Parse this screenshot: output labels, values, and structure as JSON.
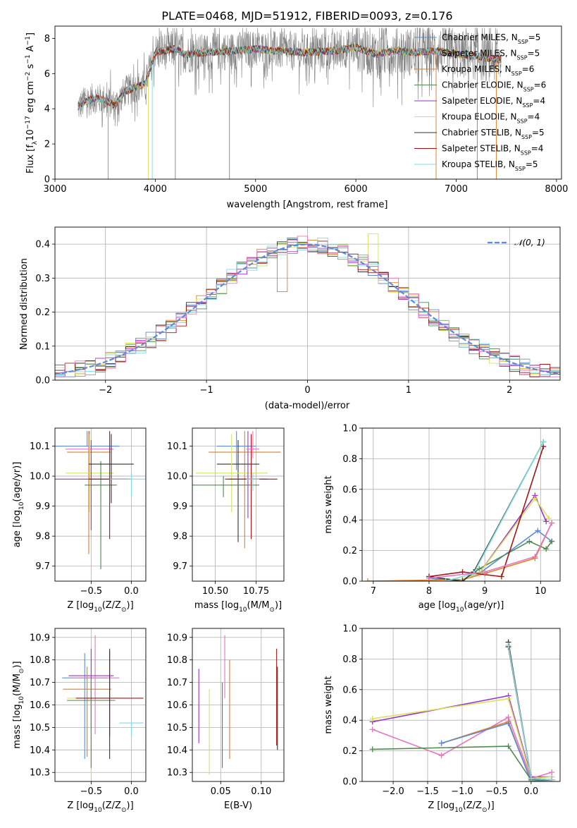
{
  "chart_data": [
    {
      "type": "line",
      "title": "PLATE=0468, MJD=51912, FIBERID=0093, z=0.176",
      "xlabel": "wavelength [Angstrom, rest frame]",
      "ylabel_main": "Flux [f",
      "ylabel_sub": "λ",
      "ylabel_rest": "10",
      "ylabel_exp1": "−17",
      "ylabel_mid": " erg cm",
      "ylabel_exp2": "−2",
      "ylabel_s": " s",
      "ylabel_exp3": "−1",
      "ylabel_end": " A",
      "ylabel_exp4": "−1",
      "ylabel_close": "]",
      "xlim": [
        3000,
        8050
      ],
      "ylim": [
        0,
        8.7
      ],
      "xticks": [
        "3000",
        "4000",
        "5000",
        "6000",
        "7000",
        "8000"
      ],
      "yticks": [
        "0",
        "2",
        "4",
        "6",
        "8"
      ],
      "observed_color": "#808080",
      "model_envelope": {
        "x": [
          3230,
          3300,
          3400,
          3500,
          3600,
          3700,
          3800,
          3900,
          4000,
          4100,
          4200,
          4300,
          4500,
          4800,
          5000,
          5200,
          5500,
          5800,
          6000,
          6200,
          6400,
          6600,
          6800,
          7000,
          7200,
          7400
        ],
        "y": [
          4.1,
          4.4,
          4.6,
          4.5,
          4.2,
          5.0,
          5.2,
          5.4,
          7.2,
          7.3,
          7.4,
          7.1,
          7.2,
          7.3,
          7.4,
          7.3,
          7.2,
          7.3,
          7.5,
          7.1,
          7.3,
          7.2,
          7.3,
          7.1,
          7.0,
          6.8
        ]
      },
      "series": [
        {
          "name": "Chabrier MILES, N",
          "sub": "SSP",
          "eq": "=5",
          "color": "#5b8bd9"
        },
        {
          "name": "Salpeter MILES, N",
          "sub": "SSP",
          "eq": "=5",
          "color": "#e07e26"
        },
        {
          "name": "Kroupa MILES, N",
          "sub": "SSP",
          "eq": "=6",
          "color": "#e07e26"
        },
        {
          "name": "Chabrier ELODIE, N",
          "sub": "SSP",
          "eq": "=6",
          "color": "#4f8a4f"
        },
        {
          "name": "Salpeter ELODIE, N",
          "sub": "SSP",
          "eq": "=4",
          "color": "#9a33c8"
        },
        {
          "name": "Kroupa ELODIE, N",
          "sub": "SSP",
          "eq": "=4",
          "color": "#d9e060"
        },
        {
          "name": "Chabrier STELIB, N",
          "sub": "SSP",
          "eq": "=5",
          "color": "#333333"
        },
        {
          "name": "Salpeter STELIB, N",
          "sub": "SSP",
          "eq": "=4",
          "color": "#a31515"
        },
        {
          "name": "Kroupa STELIB, N",
          "sub": "SSP",
          "eq": "=5",
          "color": "#7fdbe0"
        }
      ]
    },
    {
      "type": "line",
      "xlabel": "(data-model)/error",
      "ylabel": "Normed distribution",
      "xlim": [
        -2.5,
        2.5
      ],
      "ylim": [
        0,
        0.45
      ],
      "xticks": [
        "−2",
        "−1",
        "0",
        "1",
        "2"
      ],
      "yticks": [
        "0.0",
        "0.1",
        "0.2",
        "0.3",
        "0.4"
      ],
      "grid": true,
      "legend": "N(0,1)",
      "legend_text": "𝒩(0, 1)",
      "gaussian_color": "#5b8bd9",
      "hist_bin_width": 0.1,
      "hist_colors": [
        "#5b8bd9",
        "#e07e26",
        "#4f8a4f",
        "#9a33c8",
        "#d9e060",
        "#333333",
        "#a31515",
        "#7fdbe0",
        "#e377c2"
      ]
    },
    {
      "type": "scatter",
      "xlabel": "Z [log",
      "xlabel_sub": "10",
      "xlabel_rest": "(Z/Z",
      "xlabel_sun": "⊙",
      "xlabel_close": ")]",
      "ylabel": "age  [log",
      "ylabel_sub": "10",
      "ylabel_rest": "(age/yr)]",
      "xlim": [
        -0.95,
        0.18
      ],
      "ylim": [
        9.65,
        10.16
      ],
      "xticks": [
        "−0.5",
        "0.0"
      ],
      "xtickvals": [
        -0.5,
        0.0
      ],
      "yticks": [
        "9.7",
        "9.8",
        "9.9",
        "10.0",
        "10.1"
      ],
      "ytickvals": [
        9.7,
        9.8,
        9.9,
        10.0,
        10.1
      ],
      "points": [
        {
          "x": -0.55,
          "xerr": 0.4,
          "y": 10.1,
          "yerr_lo": 0.0,
          "yerr_hi": 0.05,
          "color": "#5b8bd9"
        },
        {
          "x": -0.53,
          "xerr": 0.27,
          "y": 10.08,
          "yerr_lo": 0.34,
          "yerr_hi": 0.07,
          "color": "#e07e26"
        },
        {
          "x": -0.52,
          "xerr": 0.3,
          "y": 10.09,
          "yerr_lo": 0.1,
          "yerr_hi": 0.06,
          "color": "#e377c2"
        },
        {
          "x": -0.52,
          "xerr": 0.3,
          "y": 10.01,
          "yerr_lo": 0.13,
          "yerr_hi": 0.13,
          "color": "#d9e060"
        },
        {
          "x": -0.5,
          "xerr": 0.45,
          "y": 9.99,
          "yerr_lo": 0.17,
          "yerr_hi": 0.13,
          "color": "#9a33c8"
        },
        {
          "x": -0.38,
          "xerr": 0.2,
          "y": 9.97,
          "yerr_lo": 0.28,
          "yerr_hi": 0.08,
          "color": "#4f8a4f"
        },
        {
          "x": -0.27,
          "xerr": 0.26,
          "y": 9.99,
          "yerr_lo": 0.2,
          "yerr_hi": 0.16,
          "color": "#a31515"
        },
        {
          "x": -0.25,
          "xerr": 0.28,
          "y": 10.04,
          "yerr_lo": 0.13,
          "yerr_hi": 0.1,
          "color": "#333333"
        },
        {
          "x": 0.0,
          "xerr": 0.27,
          "y": 9.99,
          "yerr_lo": 0.06,
          "yerr_hi": 0.02,
          "color": "#7fdbe0"
        }
      ]
    },
    {
      "type": "scatter",
      "xlabel": "mass [log",
      "xlabel_sub": "10",
      "xlabel_rest": "(M/M",
      "xlabel_sun": "⊙",
      "xlabel_close": ")]",
      "xlim": [
        10.36,
        10.92
      ],
      "ylim": [
        9.65,
        10.16
      ],
      "xticks": [
        "10.50",
        "10.75"
      ],
      "xtickvals": [
        10.5,
        10.75
      ],
      "yticks": [
        "9.7",
        "9.8",
        "9.9",
        "10.0",
        "10.1"
      ],
      "ytickvals": [
        9.7,
        9.8,
        9.9,
        10.0,
        10.1
      ],
      "points": [
        {
          "x": 10.63,
          "xerr": 0.12,
          "y": 10.1,
          "yerr_lo": 0.08,
          "yerr_hi": 0.05,
          "color": "#5b8bd9"
        },
        {
          "x": 10.68,
          "xerr": 0.22,
          "y": 10.08,
          "yerr_lo": 0.32,
          "yerr_hi": 0.07,
          "color": "#e07e26"
        },
        {
          "x": 10.64,
          "xerr": 0.13,
          "y": 10.04,
          "yerr_lo": 0.26,
          "yerr_hi": 0.08,
          "color": "#333333"
        },
        {
          "x": 10.6,
          "xerr": 0.22,
          "y": 10.01,
          "yerr_lo": 0.13,
          "yerr_hi": 0.13,
          "color": "#d9e060"
        },
        {
          "x": 10.7,
          "xerr": 0.12,
          "y": 9.99,
          "yerr_lo": 0.13,
          "yerr_hi": 0.16,
          "color": "#9a33c8"
        },
        {
          "x": 10.72,
          "xerr": 0.16,
          "y": 9.99,
          "yerr_lo": 0.2,
          "yerr_hi": 0.15,
          "color": "#a31515"
        },
        {
          "x": 10.55,
          "xerr": 0.22,
          "y": 9.97,
          "yerr_lo": 0.04,
          "yerr_hi": 0.03,
          "color": "#4f8a4f"
        },
        {
          "x": 10.73,
          "xerr": 0.04,
          "y": 10.09,
          "yerr_lo": 0.03,
          "yerr_hi": 0.06,
          "color": "#e377c2"
        },
        {
          "x": 10.73,
          "xerr": 0.04,
          "y": 9.99,
          "yerr_lo": 0.04,
          "yerr_hi": 0.02,
          "color": "#7fdbe0"
        }
      ]
    },
    {
      "type": "line",
      "xlabel": "age  [log",
      "xlabel_sub": "10",
      "xlabel_rest": "(age/yr)]",
      "ylabel": "mass weight",
      "xlim": [
        6.8,
        10.35
      ],
      "ylim": [
        0,
        1.0
      ],
      "xticks": [
        "7",
        "8",
        "9",
        "10"
      ],
      "xtickvals": [
        7,
        8,
        9,
        10
      ],
      "yticks": [
        "0.0",
        "0.2",
        "0.4",
        "0.6",
        "0.8",
        "1.0"
      ],
      "ytickvals": [
        0,
        0.2,
        0.4,
        0.6,
        0.8,
        1.0
      ],
      "grid": true,
      "series": [
        {
          "color": "#5b8bd9",
          "x": [
            8.0,
            8.5,
            8.9,
            9.95,
            10.2
          ],
          "y": [
            0.02,
            0.0,
            0.05,
            0.33,
            0.26
          ]
        },
        {
          "color": "#e07e26",
          "x": [
            6.9,
            8.6,
            9.0,
            9.9,
            10.2
          ],
          "y": [
            0.0,
            0.01,
            0.05,
            0.15,
            0.38
          ]
        },
        {
          "color": "#4f8a4f",
          "x": [
            8.6,
            8.9,
            9.8,
            10.1,
            10.2
          ],
          "y": [
            0.0,
            0.08,
            0.26,
            0.21,
            0.26
          ]
        },
        {
          "color": "#9a33c8",
          "x": [
            8.5,
            8.9,
            9.9,
            10.1
          ],
          "y": [
            0.0,
            0.05,
            0.56,
            0.39
          ]
        },
        {
          "color": "#d9e060",
          "x": [
            8.5,
            8.9,
            9.9,
            10.15
          ],
          "y": [
            0.0,
            0.05,
            0.54,
            0.41
          ]
        },
        {
          "color": "#333333",
          "x": [
            8.0,
            8.6,
            8.8,
            10.05
          ],
          "y": [
            0.03,
            0.0,
            0.06,
            0.91
          ]
        },
        {
          "color": "#a31515",
          "x": [
            8.0,
            8.6,
            9.3,
            10.05
          ],
          "y": [
            0.03,
            0.06,
            0.03,
            0.88
          ]
        },
        {
          "color": "#7fdbe0",
          "x": [
            8.3,
            8.8,
            10.05
          ],
          "y": [
            0.0,
            0.05,
            0.91
          ]
        },
        {
          "color": "#e377c2",
          "x": [
            8.0,
            9.0,
            9.9,
            10.2
          ],
          "y": [
            0.02,
            0.06,
            0.16,
            0.38
          ]
        }
      ]
    },
    {
      "type": "scatter",
      "xlabel": "Z [log",
      "xlabel_sub": "10",
      "xlabel_rest": "(Z/Z",
      "xlabel_sun": "⊙",
      "xlabel_close": ")]",
      "ylabel": "mass [log",
      "ylabel_sub": "10",
      "ylabel_rest": "(M/M",
      "ylabel_sun": "⊙",
      "ylabel_close": ")]",
      "xlim": [
        -0.95,
        0.18
      ],
      "ylim": [
        10.26,
        10.94
      ],
      "xticks": [
        "−0.5",
        "0.0"
      ],
      "xtickvals": [
        -0.5,
        0.0
      ],
      "yticks": [
        "10.3",
        "10.4",
        "10.5",
        "10.6",
        "10.7",
        "10.8",
        "10.9"
      ],
      "ytickvals": [
        10.3,
        10.4,
        10.5,
        10.6,
        10.7,
        10.8,
        10.9
      ],
      "points": [
        {
          "x": -0.58,
          "xerr": 0.28,
          "y": 10.72,
          "yerr_lo": 0.36,
          "yerr_hi": 0.11,
          "color": "#5b8bd9"
        },
        {
          "x": -0.45,
          "xerr": 0.3,
          "y": 10.72,
          "yerr_lo": 0.25,
          "yerr_hi": 0.19,
          "color": "#e377c2"
        },
        {
          "x": -0.5,
          "xerr": 0.28,
          "y": 10.73,
          "yerr_lo": 0.24,
          "yerr_hi": 0.12,
          "color": "#9a33c8"
        },
        {
          "x": -0.55,
          "xerr": 0.3,
          "y": 10.67,
          "yerr_lo": 0.3,
          "yerr_hi": 0.1,
          "color": "#e07e26"
        },
        {
          "x": -0.5,
          "xerr": 0.3,
          "y": 10.63,
          "yerr_lo": 0.34,
          "yerr_hi": 0.08,
          "color": "#d9e060"
        },
        {
          "x": -0.5,
          "xerr": 0.3,
          "y": 10.62,
          "yerr_lo": 0.3,
          "yerr_hi": 0.09,
          "color": "#4f8a4f"
        },
        {
          "x": -0.27,
          "xerr": 0.42,
          "y": 10.63,
          "yerr_lo": 0.17,
          "yerr_hi": 0.22,
          "color": "#a31515"
        },
        {
          "x": -0.27,
          "xerr": 0.0,
          "y": 10.56,
          "yerr_lo": 0.2,
          "yerr_hi": 0.28,
          "color": "#333333"
        },
        {
          "x": 0.0,
          "xerr": 0.15,
          "y": 10.52,
          "yerr_lo": 0.06,
          "yerr_hi": 0.0,
          "color": "#7fdbe0"
        }
      ]
    },
    {
      "type": "scatter",
      "xlabel": "E(B-V)",
      "xlim": [
        0.015,
        0.128
      ],
      "ylim": [
        10.26,
        10.94
      ],
      "xticks": [
        "0.05",
        "0.10"
      ],
      "xtickvals": [
        0.05,
        0.1
      ],
      "yticks": [
        "10.3",
        "10.4",
        "10.5",
        "10.6",
        "10.7",
        "10.8",
        "10.9"
      ],
      "ytickvals": [
        10.3,
        10.4,
        10.5,
        10.6,
        10.7,
        10.8,
        10.9
      ],
      "points": [
        {
          "x": 0.023,
          "y": 10.6,
          "yerr_lo": 0.17,
          "yerr_hi": 0.16,
          "color": "#9a33c8"
        },
        {
          "x": 0.036,
          "y": 10.49,
          "yerr_lo": 0.2,
          "yerr_hi": 0.18,
          "color": "#d9e060"
        },
        {
          "x": 0.052,
          "y": 10.5,
          "yerr_lo": 0.18,
          "yerr_hi": 0.2,
          "color": "#4f8a4f"
        },
        {
          "x": 0.055,
          "y": 10.77,
          "yerr_lo": 0.14,
          "yerr_hi": 0.14,
          "color": "#e377c2"
        },
        {
          "x": 0.061,
          "y": 10.58,
          "yerr_lo": 0.22,
          "yerr_hi": 0.22,
          "color": "#e07e26"
        },
        {
          "x": 0.119,
          "y": 10.64,
          "yerr_lo": 0.22,
          "yerr_hi": 0.21,
          "color": "#a31515"
        },
        {
          "x": 0.12,
          "y": 10.6,
          "yerr_lo": 0.18,
          "yerr_hi": 0.16,
          "color": "#7fdbe0"
        },
        {
          "x": 0.12,
          "y": 10.59,
          "yerr_lo": 0.19,
          "yerr_hi": 0.18,
          "color": "#333333"
        }
      ]
    },
    {
      "type": "line",
      "xlabel": "Z [log",
      "xlabel_sub": "10",
      "xlabel_rest": "(Z/Z",
      "xlabel_sun": "⊙",
      "xlabel_close": ")]",
      "ylabel": "mass weight",
      "xlim": [
        -2.45,
        0.42
      ],
      "ylim": [
        0,
        1.0
      ],
      "xticks": [
        "−2.0",
        "−1.5",
        "−1.0",
        "−0.5",
        "0.0"
      ],
      "xtickvals": [
        -2.0,
        -1.5,
        -1.0,
        -0.5,
        0.0
      ],
      "yticks": [
        "0.0",
        "0.2",
        "0.4",
        "0.6",
        "0.8",
        "1.0"
      ],
      "ytickvals": [
        0,
        0.2,
        0.4,
        0.6,
        0.8,
        1.0
      ],
      "grid": true,
      "series": [
        {
          "color": "#9a33c8",
          "x": [
            -2.3,
            -0.33,
            0.0,
            0.3
          ],
          "y": [
            0.39,
            0.56,
            0.03,
            0.03
          ]
        },
        {
          "color": "#d9e060",
          "x": [
            -2.3,
            -0.33,
            0.0,
            0.3
          ],
          "y": [
            0.41,
            0.54,
            0.02,
            0.03
          ]
        },
        {
          "color": "#e377c2",
          "x": [
            -2.3,
            -1.3,
            -0.33,
            0.0,
            0.3
          ],
          "y": [
            0.34,
            0.17,
            0.42,
            0.02,
            0.06
          ]
        },
        {
          "color": "#e07e26",
          "x": [
            -1.3,
            -0.33,
            0.0,
            0.3
          ],
          "y": [
            0.25,
            0.39,
            0.0,
            0.0
          ]
        },
        {
          "color": "#5b8bd9",
          "x": [
            -1.3,
            -0.33,
            0.0,
            0.3
          ],
          "y": [
            0.25,
            0.38,
            0.0,
            0.01
          ]
        },
        {
          "color": "#4f8a4f",
          "x": [
            -2.3,
            -0.33,
            0.0,
            0.3
          ],
          "y": [
            0.21,
            0.23,
            0.01,
            0.01
          ]
        },
        {
          "color": "#333333",
          "x": [
            -0.33,
            0.0,
            0.3
          ],
          "y": [
            0.91,
            0.02,
            0.01
          ]
        },
        {
          "color": "#a31515",
          "x": [
            -0.33,
            0.0,
            0.3
          ],
          "y": [
            0.88,
            0.02,
            0.01
          ]
        },
        {
          "color": "#7fdbe0",
          "x": [
            -0.33,
            0.0,
            0.3
          ],
          "y": [
            0.89,
            0.02,
            0.01
          ]
        }
      ]
    }
  ]
}
